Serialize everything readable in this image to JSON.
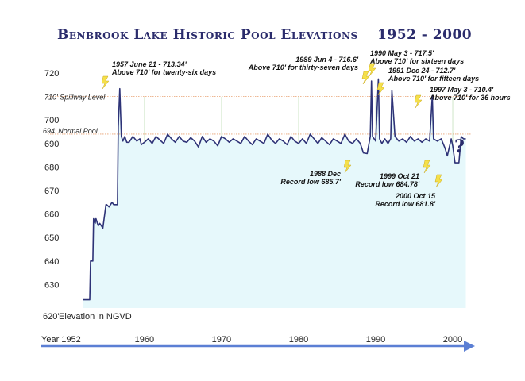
{
  "colors": {
    "line": "#2e3377",
    "fill": "#e6f8fb",
    "refline": "#e8a070",
    "grid": "#cfe6c8",
    "axis": "#5b7fd4",
    "lightning": "#f5e04a"
  },
  "chart_data": {
    "type": "line",
    "title": "Benbrook Lake Historic Pool Elevations",
    "title_years": "1952 - 2000",
    "xlabel": "Year 1952",
    "ylabel": "Elevation in NGVD",
    "xlim": [
      1949.5,
      2003.5
    ],
    "ylim": [
      620,
      720
    ],
    "yticks": [
      720,
      710,
      700,
      690,
      680,
      670,
      660,
      650,
      640,
      630
    ],
    "ytick_labels": [
      "720'",
      "710' Spillway Level",
      "700'",
      "690'",
      "680'",
      "670'",
      "660'",
      "650'",
      "640'",
      "630'"
    ],
    "ytick_620_label": "620'",
    "xticks": [
      1960,
      1970,
      1980,
      1990,
      2000
    ],
    "xtick_labels": [
      "1960",
      "1970",
      "1980",
      "1990",
      "2000"
    ],
    "reference_lines": [
      {
        "name": "710' Spillway Level",
        "value": 710
      },
      {
        "name": "694' Normal Pool",
        "value": 694
      }
    ],
    "series": [
      {
        "x": [
          1952.0,
          1952.9,
          1953.0,
          1953.3,
          1953.4,
          1953.6,
          1953.7,
          1954.0,
          1954.2,
          1954.6,
          1955.0,
          1955.1,
          1955.4,
          1955.8,
          1956.0,
          1956.5,
          1956.6,
          1956.8,
          1957.0,
          1957.2,
          1957.45,
          1957.7,
          1958.0,
          1958.5,
          1959.0,
          1959.4,
          1959.6,
          1960.0,
          1960.5,
          1961.0,
          1961.5,
          1962.0,
          1962.5,
          1963.0,
          1963.5,
          1964.0,
          1964.5,
          1965.0,
          1965.5,
          1966.0,
          1966.5,
          1967.0,
          1967.5,
          1968.0,
          1968.5,
          1969.0,
          1969.5,
          1970.0,
          1970.5,
          1971.0,
          1971.5,
          1972.0,
          1972.5,
          1973.0,
          1973.5,
          1974.0,
          1974.5,
          1975.0,
          1975.5,
          1976.0,
          1976.5,
          1977.0,
          1977.5,
          1978.0,
          1978.5,
          1979.0,
          1979.5,
          1980.0,
          1980.5,
          1981.0,
          1981.5,
          1982.0,
          1982.5,
          1983.0,
          1983.5,
          1984.0,
          1984.5,
          1985.0,
          1985.5,
          1986.0,
          1986.5,
          1987.0,
          1987.5,
          1988.0,
          1988.4,
          1988.9,
          1989.3,
          1989.45,
          1989.6,
          1990.0,
          1990.35,
          1990.5,
          1990.8,
          1991.2,
          1991.6,
          1991.95,
          1992.1,
          1992.5,
          1993.0,
          1993.5,
          1994.0,
          1994.5,
          1995.0,
          1995.5,
          1996.0,
          1996.5,
          1997.0,
          1997.35,
          1997.5,
          1998.0,
          1998.5,
          1999.0,
          1999.3,
          1999.8,
          2000.0,
          2000.3,
          2000.8,
          2001.1,
          2001.4,
          2001.7
        ],
        "y": [
          623.5,
          623.5,
          640,
          640,
          658,
          656,
          658,
          655,
          656,
          654,
          664,
          664,
          663,
          665,
          664,
          664,
          697,
          713.34,
          693,
          691,
          693,
          690.5,
          690.5,
          693,
          691,
          692,
          689.5,
          690.5,
          692,
          690,
          693,
          691.5,
          690,
          694,
          692,
          690.5,
          693,
          691,
          690.5,
          692.5,
          691,
          688.5,
          693,
          690.5,
          692,
          691,
          689,
          693,
          692,
          690.5,
          692,
          691,
          690,
          693,
          691,
          689.5,
          692,
          691,
          690,
          694,
          691.5,
          690,
          692,
          691,
          689.5,
          693,
          691,
          690,
          692,
          690,
          694,
          692,
          690,
          692.5,
          691,
          689.5,
          692,
          691,
          690,
          694,
          691,
          690,
          692,
          690,
          686,
          685.7,
          693,
          716.6,
          693,
          691,
          717.5,
          692,
          690,
          692,
          690,
          692,
          712.7,
          693,
          691,
          692,
          690.5,
          693,
          691,
          692,
          690.5,
          692,
          691,
          710.4,
          692,
          691,
          692,
          688,
          684.78,
          692,
          689,
          681.8,
          681.8,
          693,
          692,
          692
        ]
      }
    ],
    "annotations": [
      {
        "lines": [
          "1957 June 21 - 713.34'",
          "Above 710' for twenty-six days"
        ]
      },
      {
        "lines": [
          "1989 Jun 4 - 716.6'",
          "Above 710' for thirty-seven days"
        ]
      },
      {
        "lines": [
          "1990 May 3 - 717.5'",
          "Above 710' for sixteen days"
        ]
      },
      {
        "lines": [
          "1991 Dec 24 - 712.7'",
          "Above 710' for fifteen days"
        ]
      },
      {
        "lines": [
          "1997 May 3 - 710.4'",
          "Above 710' for 36 hours"
        ]
      },
      {
        "lines": [
          "1988 Dec",
          "Record low 685.7'"
        ]
      },
      {
        "lines": [
          "1999 Oct 21",
          "Record low 684.78'"
        ]
      },
      {
        "lines": [
          "2000 Oct 15",
          "Record low 681.8'"
        ]
      }
    ],
    "question_mark": "?"
  }
}
